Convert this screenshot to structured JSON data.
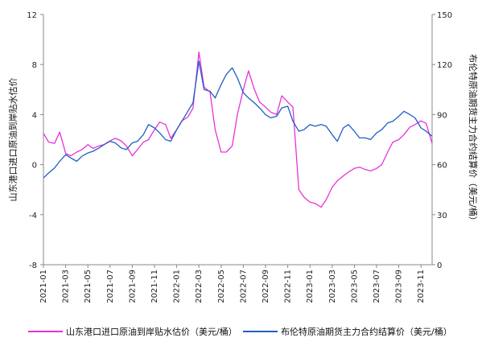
{
  "chart_data": {
    "type": "line",
    "title": "",
    "ylabel_left": "山东港口进口原油到岸贴水估价",
    "ylabel_right": "布伦特原油期货主力合约结算价（美元/桶）",
    "x_ticks": [
      "2021-01",
      "2021-03",
      "2021-05",
      "2021-07",
      "2021-09",
      "2021-11",
      "2022-01",
      "2022-03",
      "2022-05",
      "2022-07",
      "2022-09",
      "2022-11",
      "2023-01",
      "2023-03",
      "2023-05",
      "2023-07",
      "2023-09",
      "2023-11"
    ],
    "x_range": [
      "2021-01",
      "2023-12"
    ],
    "y_left": {
      "min": -8,
      "max": 12,
      "ticks": [
        -8,
        -4,
        0,
        4,
        8,
        12
      ]
    },
    "y_right": {
      "min": 0,
      "max": 150,
      "ticks": [
        0,
        30,
        60,
        90,
        120,
        150
      ]
    },
    "grid": false,
    "legend_position": "bottom",
    "series": [
      {
        "name": "山东港口进口原油到岸贴水估价（美元/桶）",
        "axis": "left",
        "color": "#e633d6",
        "x": [
          "2021-01",
          "2021-01-15",
          "2021-02",
          "2021-02-15",
          "2021-03",
          "2021-03-15",
          "2021-04",
          "2021-04-15",
          "2021-05",
          "2021-05-15",
          "2021-06",
          "2021-06-15",
          "2021-07",
          "2021-07-15",
          "2021-08",
          "2021-08-15",
          "2021-09",
          "2021-09-15",
          "2021-10",
          "2021-10-15",
          "2021-11",
          "2021-11-15",
          "2021-12",
          "2021-12-15",
          "2022-01",
          "2022-01-15",
          "2022-02",
          "2022-02-15",
          "2022-03",
          "2022-03-15",
          "2022-04",
          "2022-04-15",
          "2022-05",
          "2022-05-15",
          "2022-06",
          "2022-06-15",
          "2022-07",
          "2022-07-15",
          "2022-08",
          "2022-08-15",
          "2022-09",
          "2022-09-15",
          "2022-10",
          "2022-10-15",
          "2022-11",
          "2022-11-15",
          "2022-12",
          "2022-12-15",
          "2023-01",
          "2023-01-15",
          "2023-02",
          "2023-02-15",
          "2023-03",
          "2023-03-15",
          "2023-04",
          "2023-04-15",
          "2023-05",
          "2023-05-15",
          "2023-06",
          "2023-06-15",
          "2023-07",
          "2023-07-15",
          "2023-08",
          "2023-08-15",
          "2023-09",
          "2023-09-15",
          "2023-10",
          "2023-10-15",
          "2023-11",
          "2023-11-15",
          "2023-12"
        ],
        "y": [
          2.5,
          1.8,
          1.7,
          2.6,
          0.9,
          0.7,
          1.0,
          1.2,
          1.6,
          1.3,
          1.5,
          1.6,
          1.9,
          2.1,
          1.9,
          1.5,
          0.7,
          1.2,
          1.8,
          2.0,
          2.8,
          3.4,
          3.2,
          2.1,
          2.8,
          3.5,
          3.8,
          4.5,
          9.0,
          6.2,
          5.8,
          2.8,
          1.0,
          1.0,
          1.5,
          4.0,
          6.0,
          7.5,
          6.0,
          5.0,
          4.6,
          4.2,
          4.0,
          5.5,
          5.0,
          4.6,
          -2.0,
          -2.6,
          -3.0,
          -3.1,
          -3.4,
          -2.8,
          -1.8,
          -1.3,
          -0.9,
          -0.6,
          -0.3,
          -0.2,
          -0.4,
          -0.5,
          -0.3,
          0.0,
          1.0,
          1.8,
          2.0,
          2.4,
          3.0,
          3.2,
          3.5,
          3.3,
          1.7
        ]
      },
      {
        "name": "布伦特原油期货主力合约结算价（美元/桶）",
        "axis": "right",
        "color": "#1f5fc4",
        "x": [
          "2021-01",
          "2021-01-15",
          "2021-02",
          "2021-02-15",
          "2021-03",
          "2021-03-15",
          "2021-04",
          "2021-04-15",
          "2021-05",
          "2021-05-15",
          "2021-06",
          "2021-06-15",
          "2021-07",
          "2021-07-15",
          "2021-08",
          "2021-08-15",
          "2021-09",
          "2021-09-15",
          "2021-10",
          "2021-10-15",
          "2021-11",
          "2021-11-15",
          "2021-12",
          "2021-12-15",
          "2022-01",
          "2022-01-15",
          "2022-02",
          "2022-02-15",
          "2022-03",
          "2022-03-15",
          "2022-04",
          "2022-04-15",
          "2022-05",
          "2022-05-15",
          "2022-06",
          "2022-06-15",
          "2022-07",
          "2022-07-15",
          "2022-08",
          "2022-08-15",
          "2022-09",
          "2022-09-15",
          "2022-10",
          "2022-10-15",
          "2022-11",
          "2022-11-15",
          "2022-12",
          "2022-12-15",
          "2023-01",
          "2023-01-15",
          "2023-02",
          "2023-02-15",
          "2023-03",
          "2023-03-15",
          "2023-04",
          "2023-04-15",
          "2023-05",
          "2023-05-15",
          "2023-06",
          "2023-06-15",
          "2023-07",
          "2023-07-15",
          "2023-08",
          "2023-08-15",
          "2023-09",
          "2023-09-15",
          "2023-10",
          "2023-10-15",
          "2023-11",
          "2023-11-15",
          "2023-12"
        ],
        "y": [
          52,
          55,
          58,
          62,
          66,
          64,
          62,
          65,
          67,
          68,
          70,
          72,
          74,
          73,
          70,
          69,
          73,
          74,
          78,
          84,
          82,
          79,
          75,
          74,
          81,
          86,
          92,
          97,
          122,
          105,
          104,
          100,
          108,
          114,
          118,
          112,
          103,
          100,
          97,
          94,
          90,
          88,
          89,
          94,
          95,
          86,
          80,
          81,
          84,
          83,
          84,
          83,
          78,
          74,
          82,
          84,
          80,
          76,
          76,
          75,
          79,
          81,
          85,
          86,
          89,
          92,
          90,
          88,
          82,
          80,
          77
        ]
      }
    ]
  }
}
